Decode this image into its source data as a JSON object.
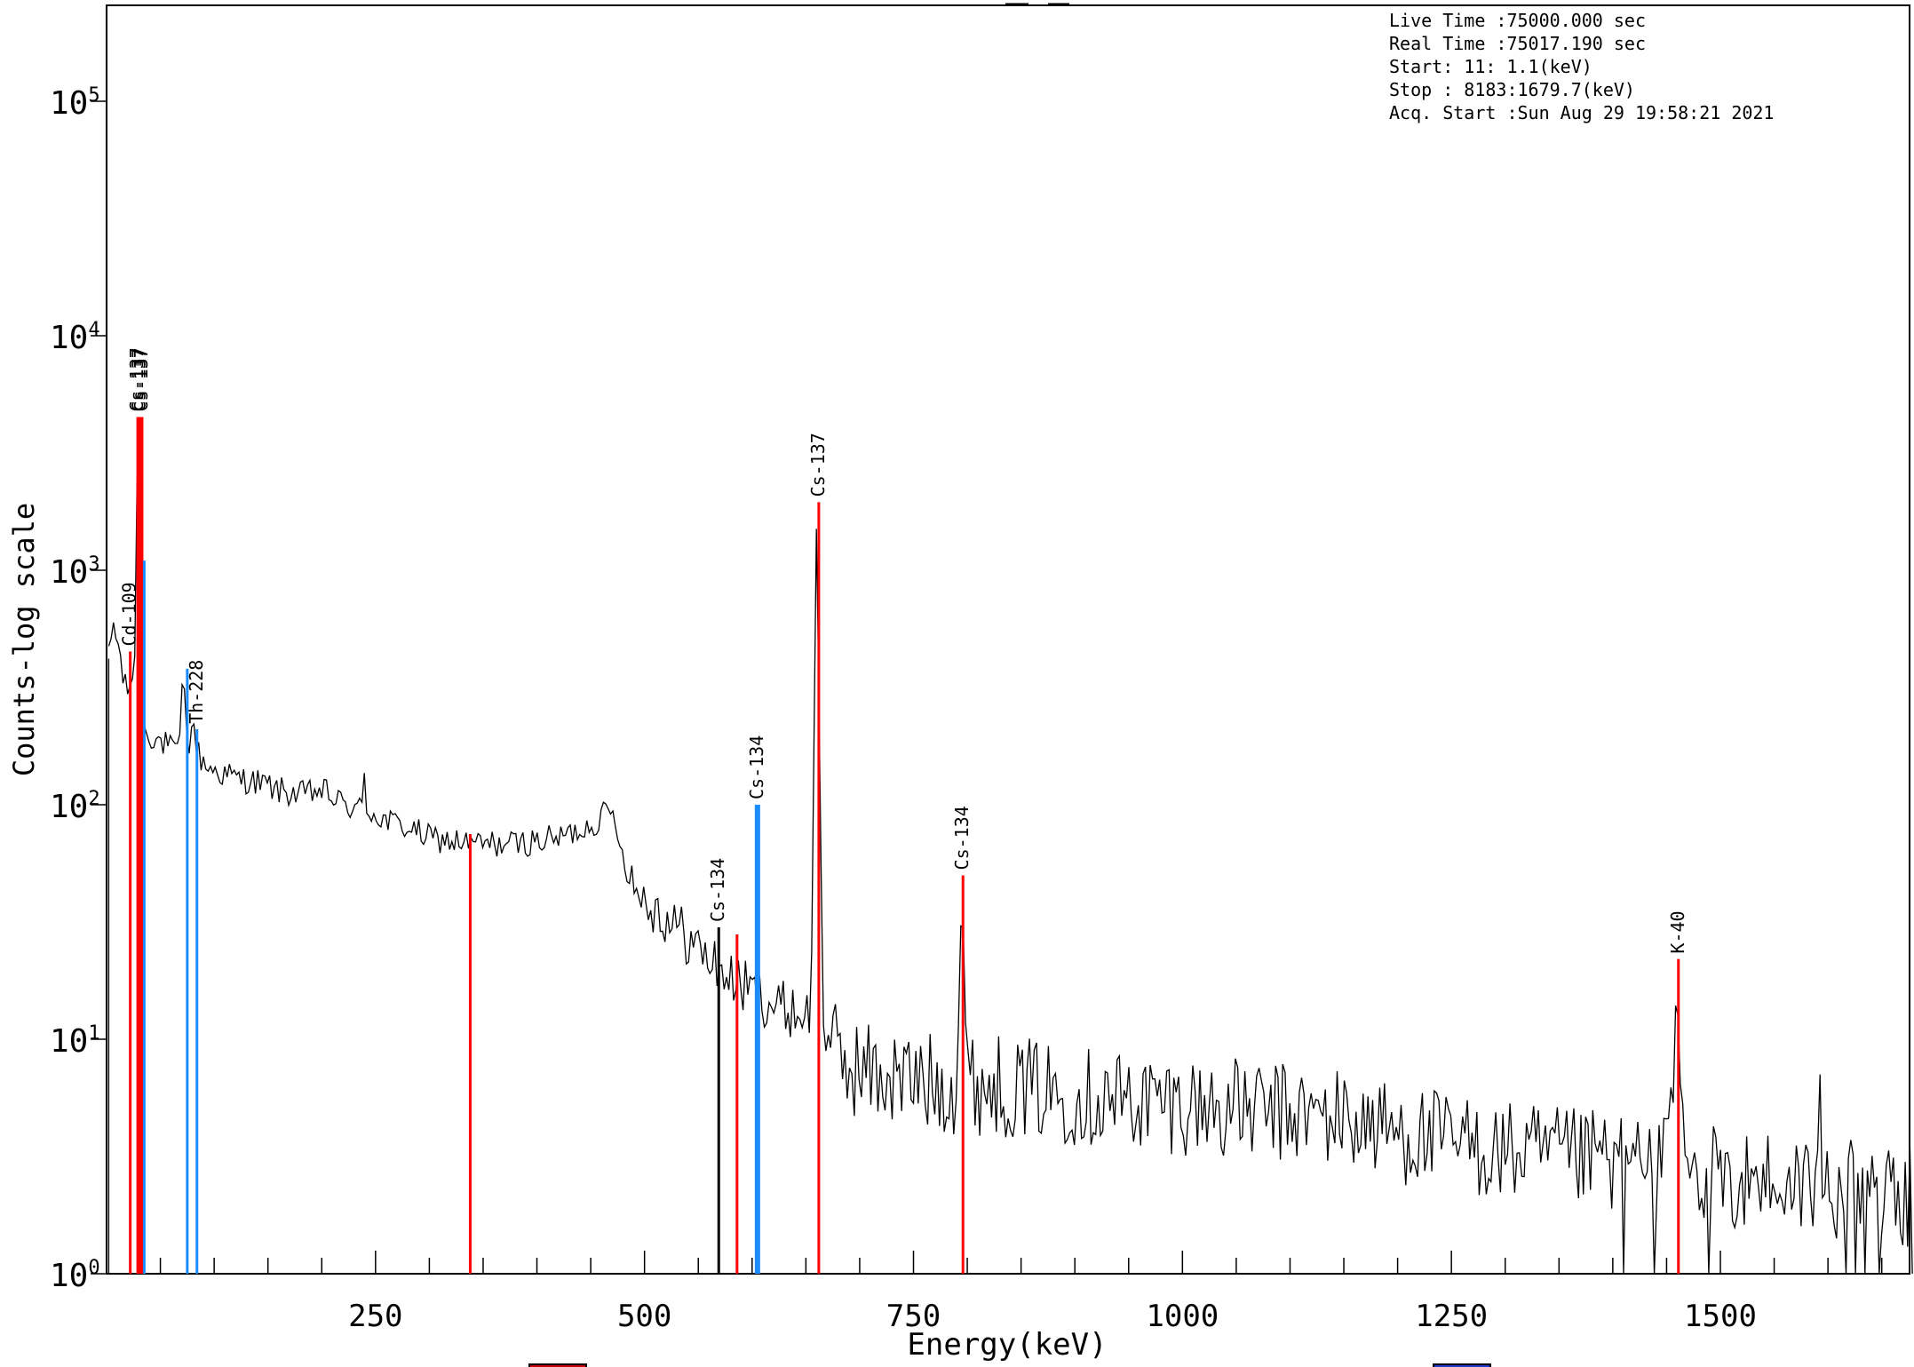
{
  "chart_data": {
    "type": "line",
    "xlabel": "Energy(keV)",
    "ylabel": "Counts-log scale",
    "xlim": [
      0,
      1680
    ],
    "ylim": [
      1,
      250000
    ],
    "yscale": "log",
    "x_ticks": [
      250,
      500,
      750,
      1000,
      1250,
      1500
    ],
    "y_ticks": [
      {
        "value": 1,
        "base": "10",
        "exp": "0"
      },
      {
        "value": 10,
        "base": "10",
        "exp": "1"
      },
      {
        "value": 100,
        "base": "10",
        "exp": "2"
      },
      {
        "value": 1000,
        "base": "10",
        "exp": "3"
      },
      {
        "value": 10000,
        "base": "10",
        "exp": "4"
      },
      {
        "value": 100000,
        "base": "10",
        "exp": "5"
      }
    ],
    "grid": false,
    "info": [
      "Live Time  :75000.000 sec",
      "Real Time  :75017.190 sec",
      "Start:   11:   1.1(keV)",
      "Stop : 8183:1679.7(keV)",
      "Acq. Start :Sun Aug 29 19:58:21 2021"
    ],
    "spectrum_anchors": [
      [
        2,
        420
      ],
      [
        6,
        600
      ],
      [
        9,
        520
      ],
      [
        13,
        420
      ],
      [
        16,
        330
      ],
      [
        19,
        300
      ],
      [
        22,
        330
      ],
      [
        26,
        400
      ],
      [
        27,
        600
      ],
      [
        28,
        1500
      ],
      [
        29,
        4500
      ],
      [
        30,
        2000
      ],
      [
        31,
        300
      ],
      [
        32,
        600
      ],
      [
        33,
        1100
      ],
      [
        34,
        400
      ],
      [
        35,
        210
      ],
      [
        40,
        200
      ],
      [
        50,
        185
      ],
      [
        60,
        175
      ],
      [
        66,
        160
      ],
      [
        69,
        240
      ],
      [
        71,
        350
      ],
      [
        73,
        260
      ],
      [
        76,
        180
      ],
      [
        79,
        200
      ],
      [
        81,
        230
      ],
      [
        84,
        170
      ],
      [
        90,
        150
      ],
      [
        100,
        140
      ],
      [
        120,
        130
      ],
      [
        140,
        125
      ],
      [
        160,
        115
      ],
      [
        180,
        110
      ],
      [
        200,
        115
      ],
      [
        220,
        100
      ],
      [
        238,
        95
      ],
      [
        240,
        150
      ],
      [
        242,
        95
      ],
      [
        260,
        85
      ],
      [
        280,
        80
      ],
      [
        300,
        72
      ],
      [
        320,
        70
      ],
      [
        340,
        68
      ],
      [
        360,
        68
      ],
      [
        380,
        68
      ],
      [
        400,
        70
      ],
      [
        420,
        72
      ],
      [
        440,
        78
      ],
      [
        455,
        85
      ],
      [
        468,
        95
      ],
      [
        475,
        80
      ],
      [
        480,
        60
      ],
      [
        490,
        45
      ],
      [
        500,
        40
      ],
      [
        520,
        33
      ],
      [
        540,
        27
      ],
      [
        560,
        22
      ],
      [
        580,
        18
      ],
      [
        600,
        16
      ],
      [
        620,
        14
      ],
      [
        640,
        13
      ],
      [
        655,
        13
      ],
      [
        658,
        300
      ],
      [
        660,
        1950
      ],
      [
        662,
        300
      ],
      [
        666,
        12
      ],
      [
        680,
        8
      ],
      [
        720,
        7
      ],
      [
        760,
        6.5
      ],
      [
        790,
        6.5
      ],
      [
        793,
        20
      ],
      [
        795,
        50
      ],
      [
        797,
        20
      ],
      [
        800,
        6.5
      ],
      [
        850,
        6.2
      ],
      [
        900,
        5.8
      ],
      [
        950,
        5.5
      ],
      [
        1000,
        5.3
      ],
      [
        1050,
        5
      ],
      [
        1100,
        4.8
      ],
      [
        1150,
        4.6
      ],
      [
        1200,
        4
      ],
      [
        1250,
        3.6
      ],
      [
        1300,
        3.3
      ],
      [
        1350,
        3.1
      ],
      [
        1400,
        3
      ],
      [
        1450,
        2.8
      ],
      [
        1458,
        8
      ],
      [
        1460,
        22
      ],
      [
        1462,
        8
      ],
      [
        1470,
        2.7
      ],
      [
        1550,
        2.5
      ],
      [
        1590,
        2.4
      ],
      [
        1592,
        7
      ],
      [
        1594,
        2.4
      ],
      [
        1640,
        2.2
      ],
      [
        1680,
        2.1
      ]
    ],
    "identified_peaks": [
      {
        "label": "Cd-109",
        "energy": 22,
        "height": 450,
        "color": "#ff0000",
        "labeled": true
      },
      {
        "label": "Cs-137",
        "energy": 29,
        "height": 4500,
        "color": "#ff0000",
        "labeled": true
      },
      {
        "label": "Cs-137",
        "energy": 31,
        "height": 4500,
        "color": "#ff0000",
        "labeled": true
      },
      {
        "label": "Cs-137",
        "energy": 33,
        "height": 4500,
        "color": "#ff0000",
        "labeled": true
      },
      {
        "label": "",
        "energy": 35,
        "height": 1100,
        "color": "#1a8cff",
        "labeled": false
      },
      {
        "label": "",
        "energy": 75,
        "height": 380,
        "color": "#1a8cff",
        "labeled": false
      },
      {
        "label": "Th-228",
        "energy": 84,
        "height": 210,
        "color": "#1a8cff",
        "labeled": true
      },
      {
        "label": "",
        "energy": 338,
        "height": 75,
        "color": "#ff0000",
        "labeled": false
      },
      {
        "label": "Cs-134",
        "energy": 569,
        "height": 30,
        "color": "#000000",
        "labeled": true
      },
      {
        "label": "",
        "energy": 586,
        "height": 28,
        "color": "#ff0000",
        "labeled": false
      },
      {
        "label": "Cs-134",
        "energy": 605,
        "height": 100,
        "color": "#1a8cff",
        "labeled": true
      },
      {
        "label": "Cs-137",
        "energy": 662,
        "height": 1950,
        "color": "#ff0000",
        "labeled": true
      },
      {
        "label": "Cs-134",
        "energy": 796,
        "height": 50,
        "color": "#ff0000",
        "labeled": true
      },
      {
        "label": "K-40",
        "energy": 1461,
        "height": 22,
        "color": "#ff0000",
        "labeled": true
      }
    ],
    "legend_swatches": [
      {
        "color": "#cc0000",
        "label": ""
      },
      {
        "color": "#1a3acc",
        "label": ""
      }
    ]
  }
}
